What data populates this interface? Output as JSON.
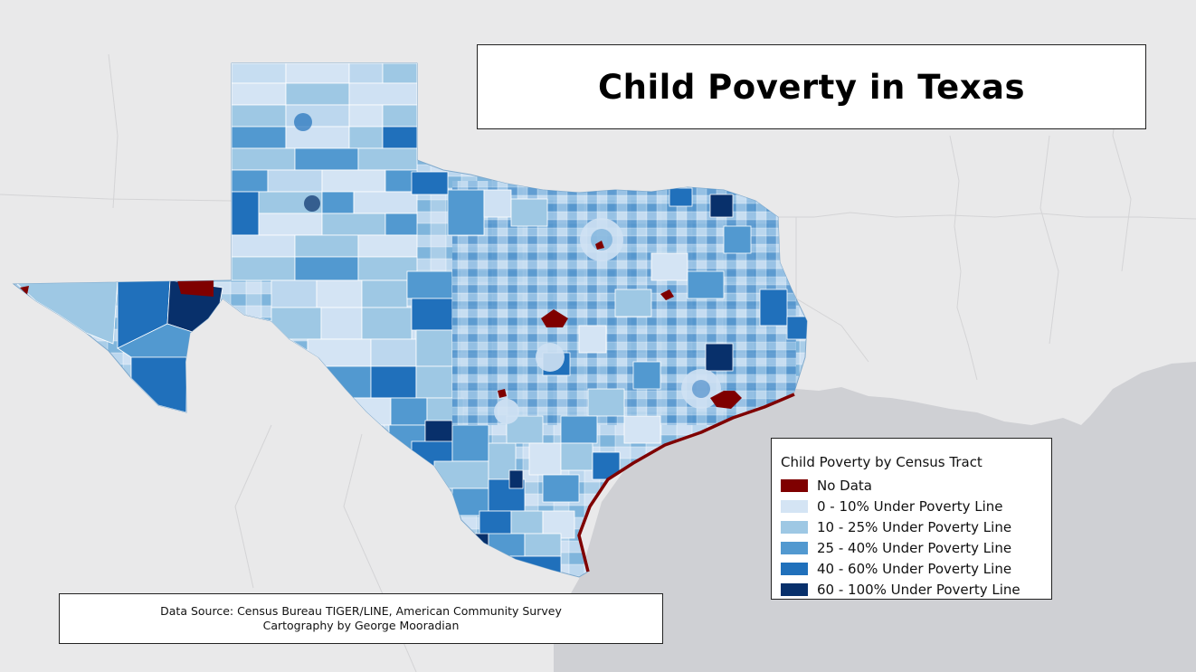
{
  "title": "Child Poverty in Texas",
  "legend": {
    "title": "Child Poverty by Census Tract",
    "items": [
      {
        "label": "No Data",
        "color": "#7f0000"
      },
      {
        "label": "0 - 10% Under Poverty Line",
        "color": "#d4e4f4"
      },
      {
        "label": "10 - 25% Under Poverty Line",
        "color": "#9ec8e4"
      },
      {
        "label": "25 - 40% Under Poverty Line",
        "color": "#5299d0"
      },
      {
        "label": "40 - 60% Under Poverty Line",
        "color": "#2070bb"
      },
      {
        "label": "60 - 100% Under Poverty Line",
        "color": "#08306b"
      }
    ]
  },
  "source": {
    "line1": "Data Source: Census Bureau TIGER/LINE, American Community Survey",
    "line2": "Cartography by George Mooradian"
  },
  "colors": {
    "land": "#e9e9ea",
    "water": "#cfd0d4",
    "no_data": "#7f0000"
  }
}
